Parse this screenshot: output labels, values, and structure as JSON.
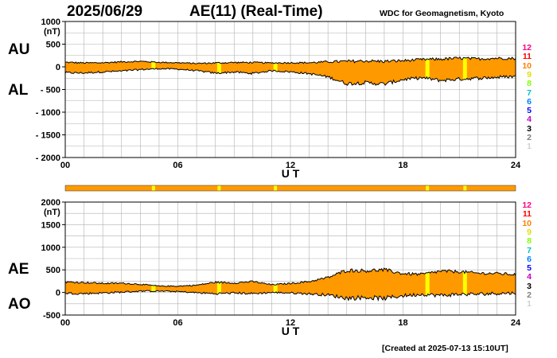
{
  "date": "2025/06/29",
  "title": "AE(11) (Real-Time)",
  "source": "WDC for Geomagnetism, Kyoto",
  "created": "[Created at 2025-07-13 15:10UT]",
  "legend_numbers": [
    "12",
    "11",
    "10",
    "9",
    "8",
    "7",
    "6",
    "5",
    "4",
    "3",
    "2",
    "1"
  ],
  "legend_colors": [
    "#ff0080",
    "#ff0000",
    "#ff8000",
    "#e0e000",
    "#80ff00",
    "#00c0c0",
    "#0080ff",
    "#0000ff",
    "#c000c0",
    "#000000",
    "#808080",
    "#d0d0d0"
  ],
  "colors": {
    "fill": "#ff9900",
    "highlight": "#ffff00",
    "line": "#000000"
  },
  "chart_data": [
    {
      "type": "area",
      "name": "AU/AL",
      "series_labels": [
        "AU",
        "AL"
      ],
      "ylabel": "(nT)",
      "xlabel": "U T",
      "ylim": [
        -2000,
        1000
      ],
      "yticks": [
        "1000",
        "500",
        "0",
        "- 500",
        "- 1000",
        "- 1500",
        "- 2000"
      ],
      "xticks": [
        "00",
        "06",
        "12",
        "18",
        "24"
      ],
      "grid": true,
      "x_hours": [
        0,
        1,
        2,
        3,
        4,
        5,
        6,
        7,
        8,
        9,
        10,
        11,
        12,
        13,
        14,
        15,
        16,
        17,
        18,
        19,
        20,
        21,
        22,
        23,
        24
      ],
      "AU": [
        100,
        85,
        90,
        110,
        120,
        100,
        90,
        75,
        85,
        95,
        95,
        85,
        90,
        90,
        110,
        120,
        130,
        120,
        135,
        160,
        170,
        190,
        175,
        190,
        185
      ],
      "AL": [
        -130,
        -135,
        -110,
        -95,
        -60,
        -40,
        -50,
        -85,
        -140,
        -115,
        -145,
        -85,
        -110,
        -150,
        -220,
        -370,
        -350,
        -380,
        -280,
        -240,
        -300,
        -270,
        -250,
        -230,
        -210
      ]
    },
    {
      "type": "area",
      "name": "AE/AO",
      "series_labels": [
        "AE",
        "AO"
      ],
      "ylabel": "(nT)",
      "xlabel": "U T",
      "ylim": [
        -500,
        2000
      ],
      "yticks": [
        "2000",
        "1500",
        "1000",
        "500",
        "0",
        "-500"
      ],
      "xticks": [
        "00",
        "06",
        "12",
        "18",
        "24"
      ],
      "grid": true,
      "x_hours": [
        0,
        1,
        2,
        3,
        4,
        5,
        6,
        7,
        8,
        9,
        10,
        11,
        12,
        13,
        14,
        15,
        16,
        17,
        18,
        19,
        20,
        21,
        22,
        23,
        24
      ],
      "AE": [
        230,
        220,
        200,
        205,
        180,
        140,
        140,
        160,
        225,
        210,
        240,
        170,
        200,
        240,
        330,
        490,
        480,
        500,
        415,
        400,
        470,
        460,
        425,
        420,
        395
      ],
      "AO": [
        -15,
        -25,
        -10,
        7,
        30,
        30,
        20,
        -5,
        -28,
        -10,
        -25,
        0,
        -10,
        -30,
        -55,
        -125,
        -110,
        -130,
        -72,
        -40,
        -65,
        -40,
        -38,
        -20,
        -13
      ]
    }
  ],
  "highlight_hours": [
    4.7,
    8.2,
    11.2,
    19.3,
    21.3
  ]
}
